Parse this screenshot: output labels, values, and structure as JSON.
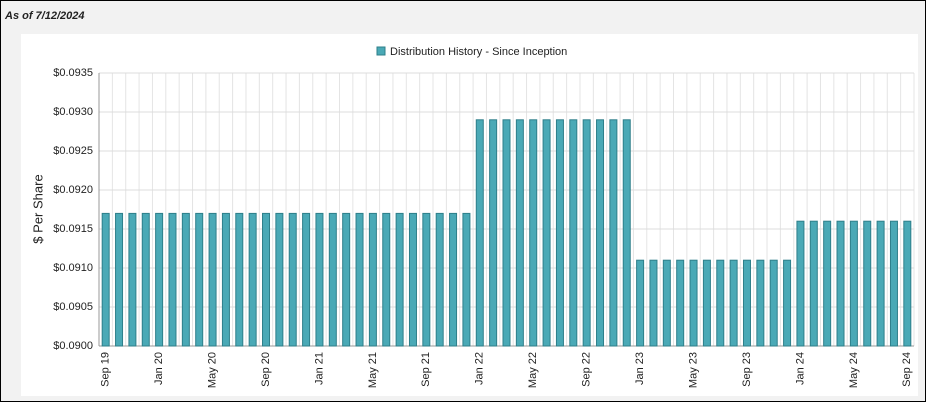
{
  "header": {
    "as_of": "As of 7/12/2024"
  },
  "chart_data": {
    "type": "bar",
    "legend": "Distribution History - Since Inception",
    "y_label": "$ Per Share",
    "color": "#4aa9b6",
    "grid": true,
    "categories": [
      "Sep 19",
      null,
      null,
      null,
      "Jan 20",
      null,
      null,
      null,
      "May 20",
      null,
      null,
      null,
      "Sep 20",
      null,
      null,
      null,
      "Jan 21",
      null,
      null,
      null,
      "May 21",
      null,
      null,
      null,
      "Sep 21",
      null,
      null,
      null,
      "Jan 22",
      null,
      null,
      null,
      "May 22",
      null,
      null,
      null,
      "Sep 22",
      null,
      null,
      null,
      "Jan 23",
      null,
      null,
      null,
      "May 23",
      null,
      null,
      null,
      "Sep 23",
      null,
      null,
      null,
      "Jan 24",
      null,
      null,
      null,
      "May 24",
      null,
      null,
      null,
      "Sep 24"
    ],
    "values": [
      0.0917,
      0.0917,
      0.0917,
      0.0917,
      0.0917,
      0.0917,
      0.0917,
      0.0917,
      0.0917,
      0.0917,
      0.0917,
      0.0917,
      0.0917,
      0.0917,
      0.0917,
      0.0917,
      0.0917,
      0.0917,
      0.0917,
      0.0917,
      0.0917,
      0.0917,
      0.0917,
      0.0917,
      0.0917,
      0.0917,
      0.0917,
      0.0917,
      0.0929,
      0.0929,
      0.0929,
      0.0929,
      0.0929,
      0.0929,
      0.0929,
      0.0929,
      0.0929,
      0.0929,
      0.0929,
      0.0929,
      0.0911,
      0.0911,
      0.0911,
      0.0911,
      0.0911,
      0.0911,
      0.0911,
      0.0911,
      0.0911,
      0.0911,
      0.0911,
      0.0911,
      0.0916,
      0.0916,
      0.0916,
      0.0916,
      0.0916,
      0.0916,
      0.0916,
      0.0916,
      0.0916
    ],
    "ylim": [
      0.09,
      0.0935
    ],
    "yticks": [
      {
        "value": 0.09,
        "label": "$0.0900"
      },
      {
        "value": 0.0905,
        "label": "$0.0905"
      },
      {
        "value": 0.091,
        "label": "$0.0910"
      },
      {
        "value": 0.0915,
        "label": "$0.0915"
      },
      {
        "value": 0.092,
        "label": "$0.0920"
      },
      {
        "value": 0.0925,
        "label": "$0.0925"
      },
      {
        "value": 0.093,
        "label": "$0.0930"
      },
      {
        "value": 0.0935,
        "label": "$0.0935"
      }
    ]
  }
}
